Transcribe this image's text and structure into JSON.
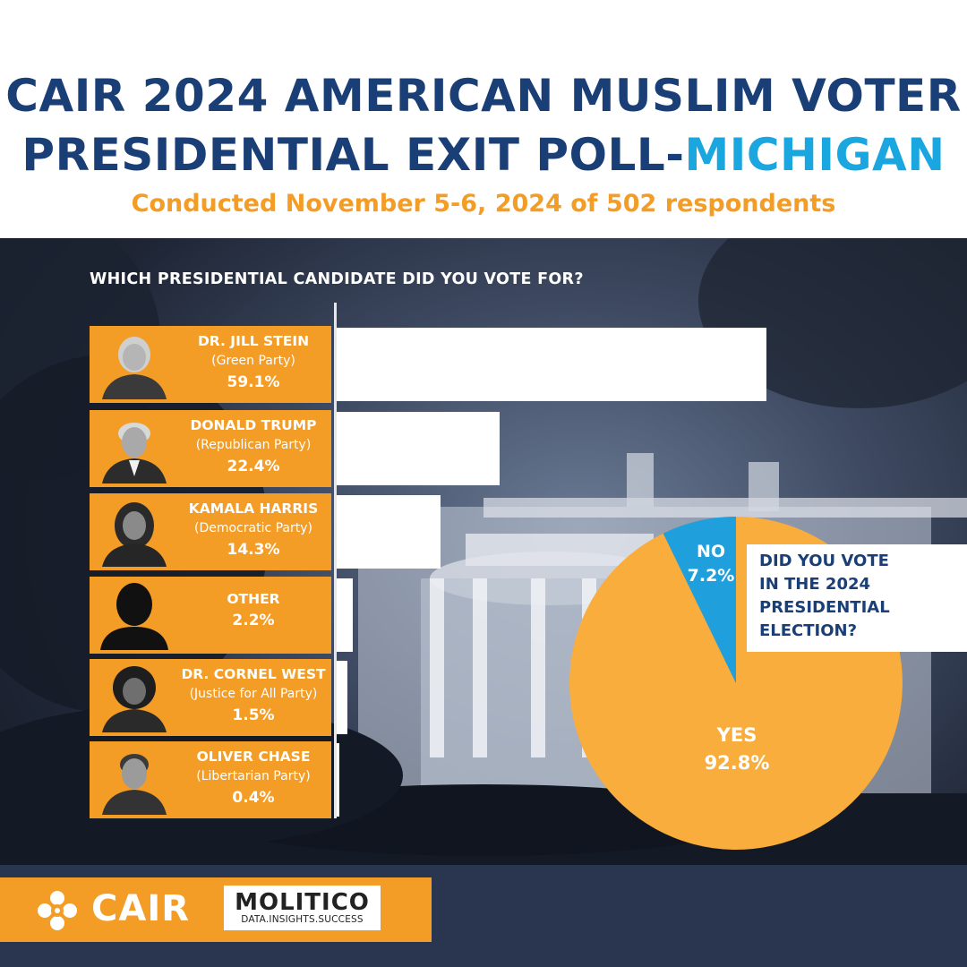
{
  "header": {
    "title_line1": "CAIR 2024 AMERICAN MUSLIM VOTER",
    "title_line2_prefix": "PRESIDENTIAL EXIT POLL-",
    "title_line2_accent": "MICHIGAN",
    "subtitle": "Conducted November 5-6, 2024 of 502 respondents"
  },
  "colors": {
    "navy": "#1a3f77",
    "cyan": "#1aa7e0",
    "orange": "#f39c26",
    "pie_yes": "#f8ad3c",
    "pie_no": "#1fa0dc"
  },
  "footer": {
    "cair_logo_icon": "cair-flower-icon",
    "cair_name": "CAIR",
    "molitico_name": "MOLITICO",
    "molitico_tagline": "DATA.INSIGHTS.SUCCESS"
  },
  "chart_data": [
    {
      "type": "bar",
      "orientation": "horizontal",
      "title": "WHICH PRESIDENTIAL CANDIDATE DID YOU VOTE FOR?",
      "categories": [
        "DR. JILL STEIN",
        "DONALD TRUMP",
        "KAMALA HARRIS",
        "OTHER",
        "DR. CORNEL WEST",
        "OLIVER CHASE"
      ],
      "parties": [
        "(Green Party)",
        "(Republican  Party)",
        "(Democratic  Party)",
        "",
        "(Justice for All Party)",
        "(Libertarian Party)"
      ],
      "values": [
        59.1,
        22.4,
        14.3,
        2.2,
        1.5,
        0.4
      ],
      "labels": [
        "59.1%",
        "22.4%",
        "14.3%",
        "2.2%",
        "1.5%",
        "0.4%"
      ],
      "xlim": [
        0,
        60
      ],
      "unit": "%"
    },
    {
      "type": "pie",
      "title": "DID YOU VOTE IN THE 2024 PRESIDENTIAL ELECTION?",
      "title_lines": [
        "DID YOU VOTE",
        "IN THE 2024",
        "PRESIDENTIAL",
        "ELECTION?"
      ],
      "categories": [
        "YES",
        "NO"
      ],
      "values": [
        92.8,
        7.2
      ],
      "labels": [
        "92.8%",
        "7.2%"
      ]
    }
  ]
}
